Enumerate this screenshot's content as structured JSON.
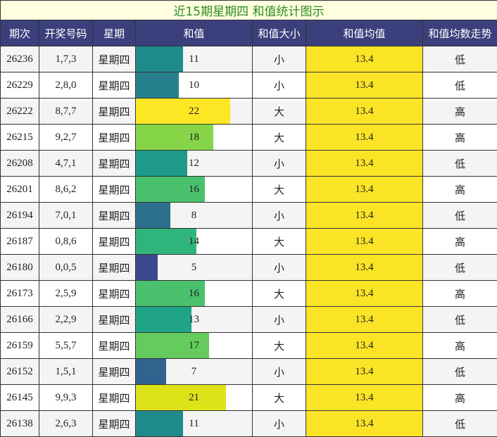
{
  "title": "近15期星期四 和值统计图示",
  "headers": [
    "期次",
    "开奖号码",
    "星期",
    "和值",
    "和值大小",
    "和值均值",
    "和值均数走势"
  ],
  "chart_data": {
    "type": "table",
    "title": "近15期星期四 和值统计图示",
    "max_sum": 27,
    "rows": [
      {
        "issue": "26236",
        "numbers": "1,7,3",
        "weekday": "星期四",
        "sum": 11,
        "size": "小",
        "avg": "13.4",
        "trend": "低",
        "color": "#1f8a8a"
      },
      {
        "issue": "26229",
        "numbers": "2,8,0",
        "weekday": "星期四",
        "sum": 10,
        "size": "小",
        "avg": "13.4",
        "trend": "低",
        "color": "#27808e"
      },
      {
        "issue": "26222",
        "numbers": "8,7,7",
        "weekday": "星期四",
        "sum": 22,
        "size": "大",
        "avg": "13.4",
        "trend": "高",
        "color": "#fde725"
      },
      {
        "issue": "26215",
        "numbers": "9,2,7",
        "weekday": "星期四",
        "sum": 18,
        "size": "大",
        "avg": "13.4",
        "trend": "高",
        "color": "#86d549"
      },
      {
        "issue": "26208",
        "numbers": "4,7,1",
        "weekday": "星期四",
        "sum": 12,
        "size": "小",
        "avg": "13.4",
        "trend": "低",
        "color": "#1e9b8a"
      },
      {
        "issue": "26201",
        "numbers": "8,6,2",
        "weekday": "星期四",
        "sum": 16,
        "size": "大",
        "avg": "13.4",
        "trend": "高",
        "color": "#4ac16d"
      },
      {
        "issue": "26194",
        "numbers": "7,0,1",
        "weekday": "星期四",
        "sum": 8,
        "size": "小",
        "avg": "13.4",
        "trend": "低",
        "color": "#2d708e"
      },
      {
        "issue": "26187",
        "numbers": "0,8,6",
        "weekday": "星期四",
        "sum": 14,
        "size": "大",
        "avg": "13.4",
        "trend": "高",
        "color": "#2fb47c"
      },
      {
        "issue": "26180",
        "numbers": "0,0,5",
        "weekday": "星期四",
        "sum": 5,
        "size": "小",
        "avg": "13.4",
        "trend": "低",
        "color": "#3b4a8c"
      },
      {
        "issue": "26173",
        "numbers": "2,5,9",
        "weekday": "星期四",
        "sum": 16,
        "size": "大",
        "avg": "13.4",
        "trend": "高",
        "color": "#4ac16d"
      },
      {
        "issue": "26166",
        "numbers": "2,2,9",
        "weekday": "星期四",
        "sum": 13,
        "size": "小",
        "avg": "13.4",
        "trend": "低",
        "color": "#20a486"
      },
      {
        "issue": "26159",
        "numbers": "5,5,7",
        "weekday": "星期四",
        "sum": 17,
        "size": "大",
        "avg": "13.4",
        "trend": "高",
        "color": "#65cb5e"
      },
      {
        "issue": "26152",
        "numbers": "1,5,1",
        "weekday": "星期四",
        "sum": 7,
        "size": "小",
        "avg": "13.4",
        "trend": "低",
        "color": "#31638e"
      },
      {
        "issue": "26145",
        "numbers": "9,9,3",
        "weekday": "星期四",
        "sum": 21,
        "size": "大",
        "avg": "13.4",
        "trend": "高",
        "color": "#dde318"
      },
      {
        "issue": "26138",
        "numbers": "2,6,3",
        "weekday": "星期四",
        "sum": 11,
        "size": "小",
        "avg": "13.4",
        "trend": "低",
        "color": "#1f8a8a"
      }
    ]
  }
}
